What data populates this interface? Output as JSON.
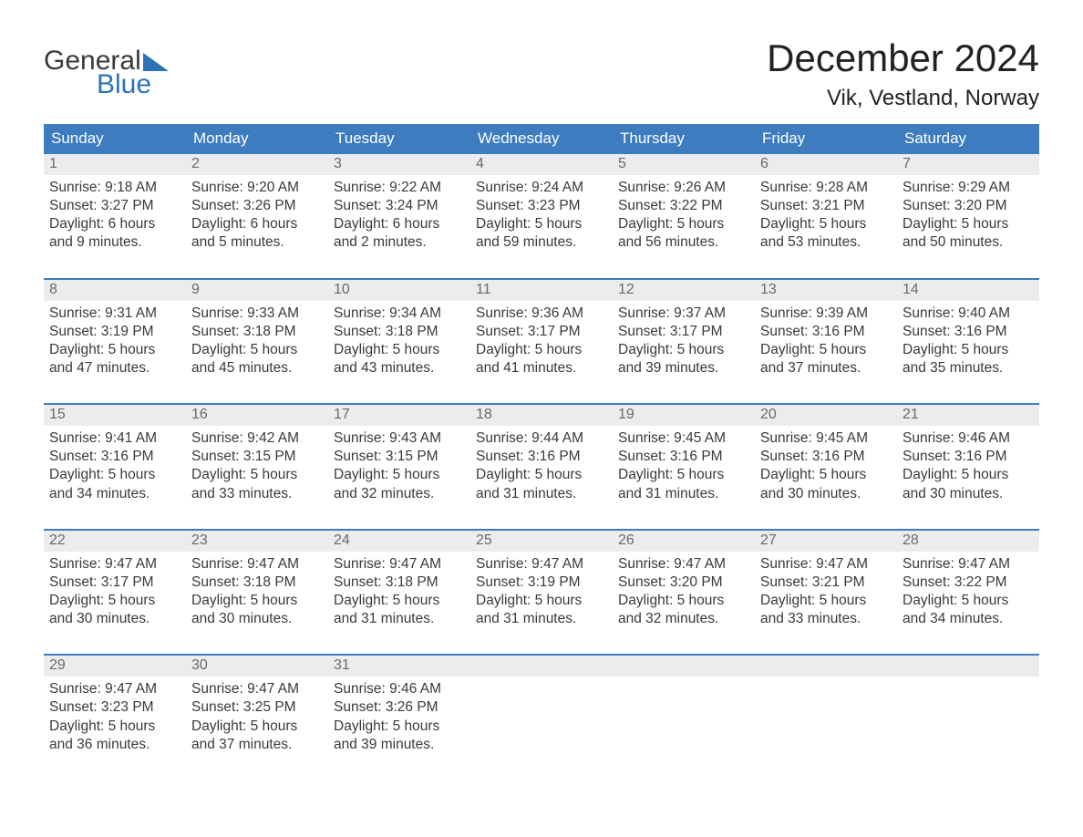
{
  "brand": {
    "word1": "General",
    "word2": "Blue"
  },
  "colors": {
    "header_bg": "#3d7cbf",
    "header_text": "#ffffff",
    "daynum_bg": "#ececec",
    "daynum_text": "#6a6a6a",
    "body_text": "#3a3a3a",
    "accent": "#2d71b6",
    "rule": "#3d7cbf",
    "page_bg": "#ffffff"
  },
  "title": "December 2024",
  "location": "Vik, Vestland, Norway",
  "days_of_week": [
    "Sunday",
    "Monday",
    "Tuesday",
    "Wednesday",
    "Thursday",
    "Friday",
    "Saturday"
  ],
  "weeks": [
    [
      {
        "n": "1",
        "sunrise": "Sunrise: 9:18 AM",
        "sunset": "Sunset: 3:27 PM",
        "day1": "Daylight: 6 hours",
        "day2": "and 9 minutes."
      },
      {
        "n": "2",
        "sunrise": "Sunrise: 9:20 AM",
        "sunset": "Sunset: 3:26 PM",
        "day1": "Daylight: 6 hours",
        "day2": "and 5 minutes."
      },
      {
        "n": "3",
        "sunrise": "Sunrise: 9:22 AM",
        "sunset": "Sunset: 3:24 PM",
        "day1": "Daylight: 6 hours",
        "day2": "and 2 minutes."
      },
      {
        "n": "4",
        "sunrise": "Sunrise: 9:24 AM",
        "sunset": "Sunset: 3:23 PM",
        "day1": "Daylight: 5 hours",
        "day2": "and 59 minutes."
      },
      {
        "n": "5",
        "sunrise": "Sunrise: 9:26 AM",
        "sunset": "Sunset: 3:22 PM",
        "day1": "Daylight: 5 hours",
        "day2": "and 56 minutes."
      },
      {
        "n": "6",
        "sunrise": "Sunrise: 9:28 AM",
        "sunset": "Sunset: 3:21 PM",
        "day1": "Daylight: 5 hours",
        "day2": "and 53 minutes."
      },
      {
        "n": "7",
        "sunrise": "Sunrise: 9:29 AM",
        "sunset": "Sunset: 3:20 PM",
        "day1": "Daylight: 5 hours",
        "day2": "and 50 minutes."
      }
    ],
    [
      {
        "n": "8",
        "sunrise": "Sunrise: 9:31 AM",
        "sunset": "Sunset: 3:19 PM",
        "day1": "Daylight: 5 hours",
        "day2": "and 47 minutes."
      },
      {
        "n": "9",
        "sunrise": "Sunrise: 9:33 AM",
        "sunset": "Sunset: 3:18 PM",
        "day1": "Daylight: 5 hours",
        "day2": "and 45 minutes."
      },
      {
        "n": "10",
        "sunrise": "Sunrise: 9:34 AM",
        "sunset": "Sunset: 3:18 PM",
        "day1": "Daylight: 5 hours",
        "day2": "and 43 minutes."
      },
      {
        "n": "11",
        "sunrise": "Sunrise: 9:36 AM",
        "sunset": "Sunset: 3:17 PM",
        "day1": "Daylight: 5 hours",
        "day2": "and 41 minutes."
      },
      {
        "n": "12",
        "sunrise": "Sunrise: 9:37 AM",
        "sunset": "Sunset: 3:17 PM",
        "day1": "Daylight: 5 hours",
        "day2": "and 39 minutes."
      },
      {
        "n": "13",
        "sunrise": "Sunrise: 9:39 AM",
        "sunset": "Sunset: 3:16 PM",
        "day1": "Daylight: 5 hours",
        "day2": "and 37 minutes."
      },
      {
        "n": "14",
        "sunrise": "Sunrise: 9:40 AM",
        "sunset": "Sunset: 3:16 PM",
        "day1": "Daylight: 5 hours",
        "day2": "and 35 minutes."
      }
    ],
    [
      {
        "n": "15",
        "sunrise": "Sunrise: 9:41 AM",
        "sunset": "Sunset: 3:16 PM",
        "day1": "Daylight: 5 hours",
        "day2": "and 34 minutes."
      },
      {
        "n": "16",
        "sunrise": "Sunrise: 9:42 AM",
        "sunset": "Sunset: 3:15 PM",
        "day1": "Daylight: 5 hours",
        "day2": "and 33 minutes."
      },
      {
        "n": "17",
        "sunrise": "Sunrise: 9:43 AM",
        "sunset": "Sunset: 3:15 PM",
        "day1": "Daylight: 5 hours",
        "day2": "and 32 minutes."
      },
      {
        "n": "18",
        "sunrise": "Sunrise: 9:44 AM",
        "sunset": "Sunset: 3:16 PM",
        "day1": "Daylight: 5 hours",
        "day2": "and 31 minutes."
      },
      {
        "n": "19",
        "sunrise": "Sunrise: 9:45 AM",
        "sunset": "Sunset: 3:16 PM",
        "day1": "Daylight: 5 hours",
        "day2": "and 31 minutes."
      },
      {
        "n": "20",
        "sunrise": "Sunrise: 9:45 AM",
        "sunset": "Sunset: 3:16 PM",
        "day1": "Daylight: 5 hours",
        "day2": "and 30 minutes."
      },
      {
        "n": "21",
        "sunrise": "Sunrise: 9:46 AM",
        "sunset": "Sunset: 3:16 PM",
        "day1": "Daylight: 5 hours",
        "day2": "and 30 minutes."
      }
    ],
    [
      {
        "n": "22",
        "sunrise": "Sunrise: 9:47 AM",
        "sunset": "Sunset: 3:17 PM",
        "day1": "Daylight: 5 hours",
        "day2": "and 30 minutes."
      },
      {
        "n": "23",
        "sunrise": "Sunrise: 9:47 AM",
        "sunset": "Sunset: 3:18 PM",
        "day1": "Daylight: 5 hours",
        "day2": "and 30 minutes."
      },
      {
        "n": "24",
        "sunrise": "Sunrise: 9:47 AM",
        "sunset": "Sunset: 3:18 PM",
        "day1": "Daylight: 5 hours",
        "day2": "and 31 minutes."
      },
      {
        "n": "25",
        "sunrise": "Sunrise: 9:47 AM",
        "sunset": "Sunset: 3:19 PM",
        "day1": "Daylight: 5 hours",
        "day2": "and 31 minutes."
      },
      {
        "n": "26",
        "sunrise": "Sunrise: 9:47 AM",
        "sunset": "Sunset: 3:20 PM",
        "day1": "Daylight: 5 hours",
        "day2": "and 32 minutes."
      },
      {
        "n": "27",
        "sunrise": "Sunrise: 9:47 AM",
        "sunset": "Sunset: 3:21 PM",
        "day1": "Daylight: 5 hours",
        "day2": "and 33 minutes."
      },
      {
        "n": "28",
        "sunrise": "Sunrise: 9:47 AM",
        "sunset": "Sunset: 3:22 PM",
        "day1": "Daylight: 5 hours",
        "day2": "and 34 minutes."
      }
    ],
    [
      {
        "n": "29",
        "sunrise": "Sunrise: 9:47 AM",
        "sunset": "Sunset: 3:23 PM",
        "day1": "Daylight: 5 hours",
        "day2": "and 36 minutes."
      },
      {
        "n": "30",
        "sunrise": "Sunrise: 9:47 AM",
        "sunset": "Sunset: 3:25 PM",
        "day1": "Daylight: 5 hours",
        "day2": "and 37 minutes."
      },
      {
        "n": "31",
        "sunrise": "Sunrise: 9:46 AM",
        "sunset": "Sunset: 3:26 PM",
        "day1": "Daylight: 5 hours",
        "day2": "and 39 minutes."
      },
      {
        "empty": true
      },
      {
        "empty": true
      },
      {
        "empty": true
      },
      {
        "empty": true
      }
    ]
  ]
}
